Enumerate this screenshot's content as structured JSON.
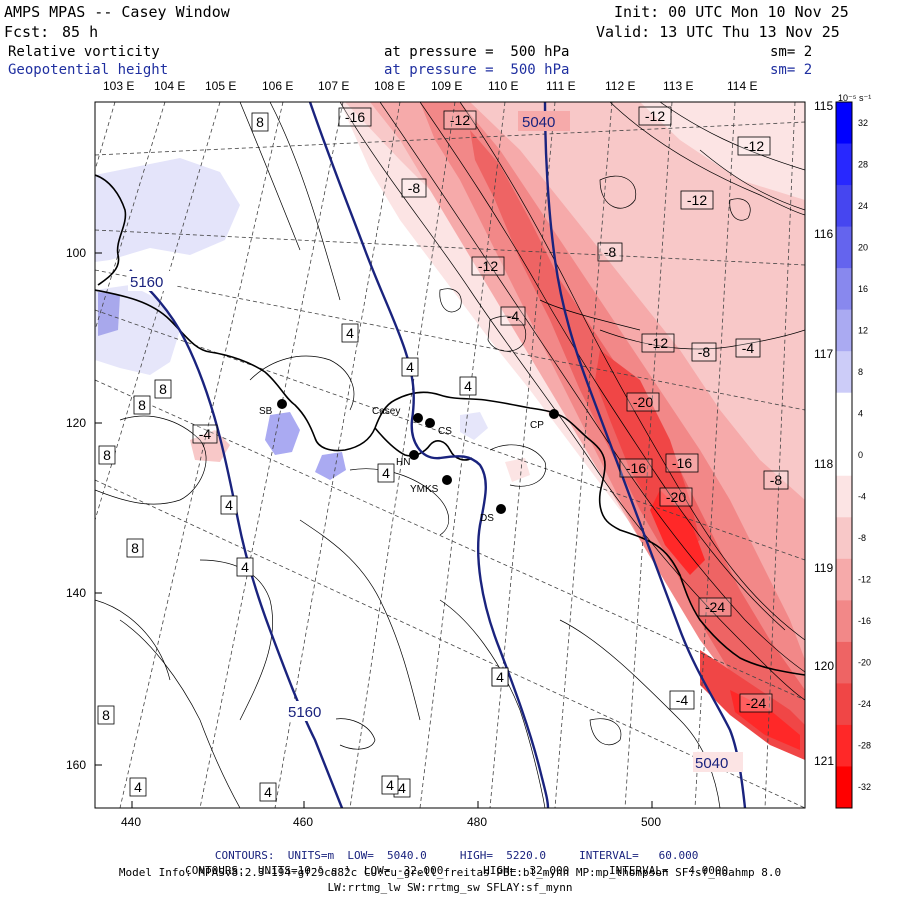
{
  "header": {
    "title": "AMPS MPAS -- Casey Window",
    "fcst_label": "Fcst:",
    "fcst_value": "85 h",
    "init": "Init: 00 UTC Mon 10 Nov 25",
    "valid": "Valid: 13 UTC Thu 13 Nov 25",
    "field1_name": "Relative vorticity",
    "field1_level": "at pressure =  500 hPa",
    "field1_sm": "sm= 2",
    "field2_name": "Geopotential height",
    "field2_level": "at pressure =  500 hPa",
    "field2_sm": "sm= 2"
  },
  "top_lon_labels": [
    "103 E",
    "104 E",
    "105 E",
    "106 E",
    "107 E",
    "108 E",
    "109 E",
    "110 E",
    "111 E",
    "112 E",
    "113 E",
    "114 E"
  ],
  "right_lon_labels": [
    "115 E",
    "116 E",
    "117 E",
    "118 E",
    "119 E",
    "120 E",
    "121 E"
  ],
  "x_axis_ticks": [
    "440",
    "460",
    "480",
    "500"
  ],
  "y_axis_ticks": [
    "100",
    "120",
    "140",
    "160"
  ],
  "stations": [
    {
      "name": "SB"
    },
    {
      "name": "Casey"
    },
    {
      "name": "CS"
    },
    {
      "name": "CP"
    },
    {
      "name": "HN"
    },
    {
      "name": "YMKS"
    },
    {
      "name": "DS"
    }
  ],
  "height_labels": [
    "5040",
    "5160",
    "5160",
    "5040"
  ],
  "vorticity_labels": [
    "-16",
    "-12",
    "-12",
    "-12",
    "-8",
    "-12",
    "-8",
    "-12",
    "-4",
    "-12",
    "-8",
    "-4",
    "-20",
    "-16",
    "-16",
    "-8",
    "-20",
    "-24",
    "-24",
    "-4",
    "8",
    "8",
    "8",
    "8",
    "4",
    "4",
    "4",
    "4",
    "4",
    "8",
    "4",
    "-4",
    "4",
    "4",
    "4",
    "4",
    "4",
    "4",
    "8"
  ],
  "colorbar": {
    "unit": "10⁻⁵ s⁻¹",
    "ticks": [
      "32",
      "28",
      "24",
      "20",
      "16",
      "12",
      "8",
      "4",
      "0",
      "-4",
      "-8",
      "-12",
      "-16",
      "-20",
      "-24",
      "-28",
      "-32"
    ],
    "colors": [
      "#0000ff",
      "#2828ff",
      "#4646f0",
      "#6464ee",
      "#8888ee",
      "#aaaaf2",
      "#ccccf8",
      "#ffffff",
      "#ffffff",
      "#fce4e4",
      "#f8c8c8",
      "#f6aaaa",
      "#f28888",
      "#ee6464",
      "#f04646",
      "#ff2828",
      "#ff0000"
    ]
  },
  "footer": {
    "line1_prefix": "CONTOURS:  UNITS=m  LOW=  5040.0",
    "line1_high": "HIGH=  5220.0",
    "line1_interval": "INTERVAL=   60.000",
    "line2_prefix": "CONTOURS:  UNITS=10⁻⁵ s⁻¹  LOW= -32.000",
    "line2_high": "HIGH=  32.000",
    "line2_interval": "INTERVAL=   4.0000",
    "line3": "Model Info: MPASv8.2.3-194-gf29cd82c CU:cu_grell_freitas PBL:bl_mynn MP:mp_thompson SF:sf_noahmp 8.0",
    "line4": "LW:rrtmg_lw SW:rrtmg_sw SFLAY:sf_mynn"
  }
}
